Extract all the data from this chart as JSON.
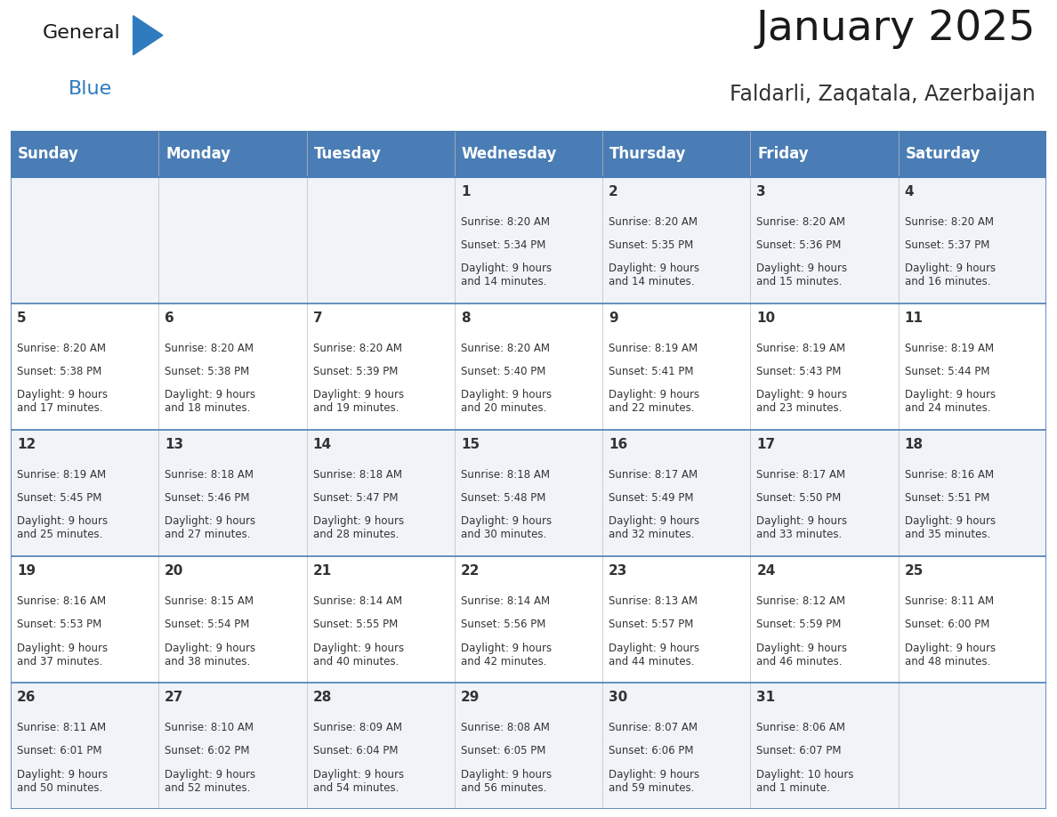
{
  "title": "January 2025",
  "subtitle": "Faldarli, Zaqatala, Azerbaijan",
  "days_of_week": [
    "Sunday",
    "Monday",
    "Tuesday",
    "Wednesday",
    "Thursday",
    "Friday",
    "Saturday"
  ],
  "header_bg": "#4A7DB5",
  "header_text": "#FFFFFF",
  "row_bg_even": "#F0F4F8",
  "row_bg_odd": "#FFFFFF",
  "cell_text_color": "#333333",
  "day_num_color": "#333333",
  "border_color": "#4A7DB5",
  "title_color": "#1a1a1a",
  "subtitle_color": "#333333",
  "logo_general_color": "#1a1a1a",
  "logo_blue_color": "#2E7BBF",
  "weeks": [
    [
      null,
      null,
      null,
      {
        "day": 1,
        "sunrise": "8:20 AM",
        "sunset": "5:34 PM",
        "daylight": "9 hours\nand 14 minutes."
      },
      {
        "day": 2,
        "sunrise": "8:20 AM",
        "sunset": "5:35 PM",
        "daylight": "9 hours\nand 14 minutes."
      },
      {
        "day": 3,
        "sunrise": "8:20 AM",
        "sunset": "5:36 PM",
        "daylight": "9 hours\nand 15 minutes."
      },
      {
        "day": 4,
        "sunrise": "8:20 AM",
        "sunset": "5:37 PM",
        "daylight": "9 hours\nand 16 minutes."
      }
    ],
    [
      {
        "day": 5,
        "sunrise": "8:20 AM",
        "sunset": "5:38 PM",
        "daylight": "9 hours\nand 17 minutes."
      },
      {
        "day": 6,
        "sunrise": "8:20 AM",
        "sunset": "5:38 PM",
        "daylight": "9 hours\nand 18 minutes."
      },
      {
        "day": 7,
        "sunrise": "8:20 AM",
        "sunset": "5:39 PM",
        "daylight": "9 hours\nand 19 minutes."
      },
      {
        "day": 8,
        "sunrise": "8:20 AM",
        "sunset": "5:40 PM",
        "daylight": "9 hours\nand 20 minutes."
      },
      {
        "day": 9,
        "sunrise": "8:19 AM",
        "sunset": "5:41 PM",
        "daylight": "9 hours\nand 22 minutes."
      },
      {
        "day": 10,
        "sunrise": "8:19 AM",
        "sunset": "5:43 PM",
        "daylight": "9 hours\nand 23 minutes."
      },
      {
        "day": 11,
        "sunrise": "8:19 AM",
        "sunset": "5:44 PM",
        "daylight": "9 hours\nand 24 minutes."
      }
    ],
    [
      {
        "day": 12,
        "sunrise": "8:19 AM",
        "sunset": "5:45 PM",
        "daylight": "9 hours\nand 25 minutes."
      },
      {
        "day": 13,
        "sunrise": "8:18 AM",
        "sunset": "5:46 PM",
        "daylight": "9 hours\nand 27 minutes."
      },
      {
        "day": 14,
        "sunrise": "8:18 AM",
        "sunset": "5:47 PM",
        "daylight": "9 hours\nand 28 minutes."
      },
      {
        "day": 15,
        "sunrise": "8:18 AM",
        "sunset": "5:48 PM",
        "daylight": "9 hours\nand 30 minutes."
      },
      {
        "day": 16,
        "sunrise": "8:17 AM",
        "sunset": "5:49 PM",
        "daylight": "9 hours\nand 32 minutes."
      },
      {
        "day": 17,
        "sunrise": "8:17 AM",
        "sunset": "5:50 PM",
        "daylight": "9 hours\nand 33 minutes."
      },
      {
        "day": 18,
        "sunrise": "8:16 AM",
        "sunset": "5:51 PM",
        "daylight": "9 hours\nand 35 minutes."
      }
    ],
    [
      {
        "day": 19,
        "sunrise": "8:16 AM",
        "sunset": "5:53 PM",
        "daylight": "9 hours\nand 37 minutes."
      },
      {
        "day": 20,
        "sunrise": "8:15 AM",
        "sunset": "5:54 PM",
        "daylight": "9 hours\nand 38 minutes."
      },
      {
        "day": 21,
        "sunrise": "8:14 AM",
        "sunset": "5:55 PM",
        "daylight": "9 hours\nand 40 minutes."
      },
      {
        "day": 22,
        "sunrise": "8:14 AM",
        "sunset": "5:56 PM",
        "daylight": "9 hours\nand 42 minutes."
      },
      {
        "day": 23,
        "sunrise": "8:13 AM",
        "sunset": "5:57 PM",
        "daylight": "9 hours\nand 44 minutes."
      },
      {
        "day": 24,
        "sunrise": "8:12 AM",
        "sunset": "5:59 PM",
        "daylight": "9 hours\nand 46 minutes."
      },
      {
        "day": 25,
        "sunrise": "8:11 AM",
        "sunset": "6:00 PM",
        "daylight": "9 hours\nand 48 minutes."
      }
    ],
    [
      {
        "day": 26,
        "sunrise": "8:11 AM",
        "sunset": "6:01 PM",
        "daylight": "9 hours\nand 50 minutes."
      },
      {
        "day": 27,
        "sunrise": "8:10 AM",
        "sunset": "6:02 PM",
        "daylight": "9 hours\nand 52 minutes."
      },
      {
        "day": 28,
        "sunrise": "8:09 AM",
        "sunset": "6:04 PM",
        "daylight": "9 hours\nand 54 minutes."
      },
      {
        "day": 29,
        "sunrise": "8:08 AM",
        "sunset": "6:05 PM",
        "daylight": "9 hours\nand 56 minutes."
      },
      {
        "day": 30,
        "sunrise": "8:07 AM",
        "sunset": "6:06 PM",
        "daylight": "9 hours\nand 59 minutes."
      },
      {
        "day": 31,
        "sunrise": "8:06 AM",
        "sunset": "6:07 PM",
        "daylight": "10 hours\nand 1 minute."
      },
      null
    ]
  ],
  "fig_width": 11.88,
  "fig_height": 9.18,
  "fig_dpi": 100,
  "header_fontsize": 12,
  "day_num_fontsize": 11,
  "cell_fontsize": 8.5,
  "title_fontsize": 34,
  "subtitle_fontsize": 17,
  "logo_fontsize": 16
}
